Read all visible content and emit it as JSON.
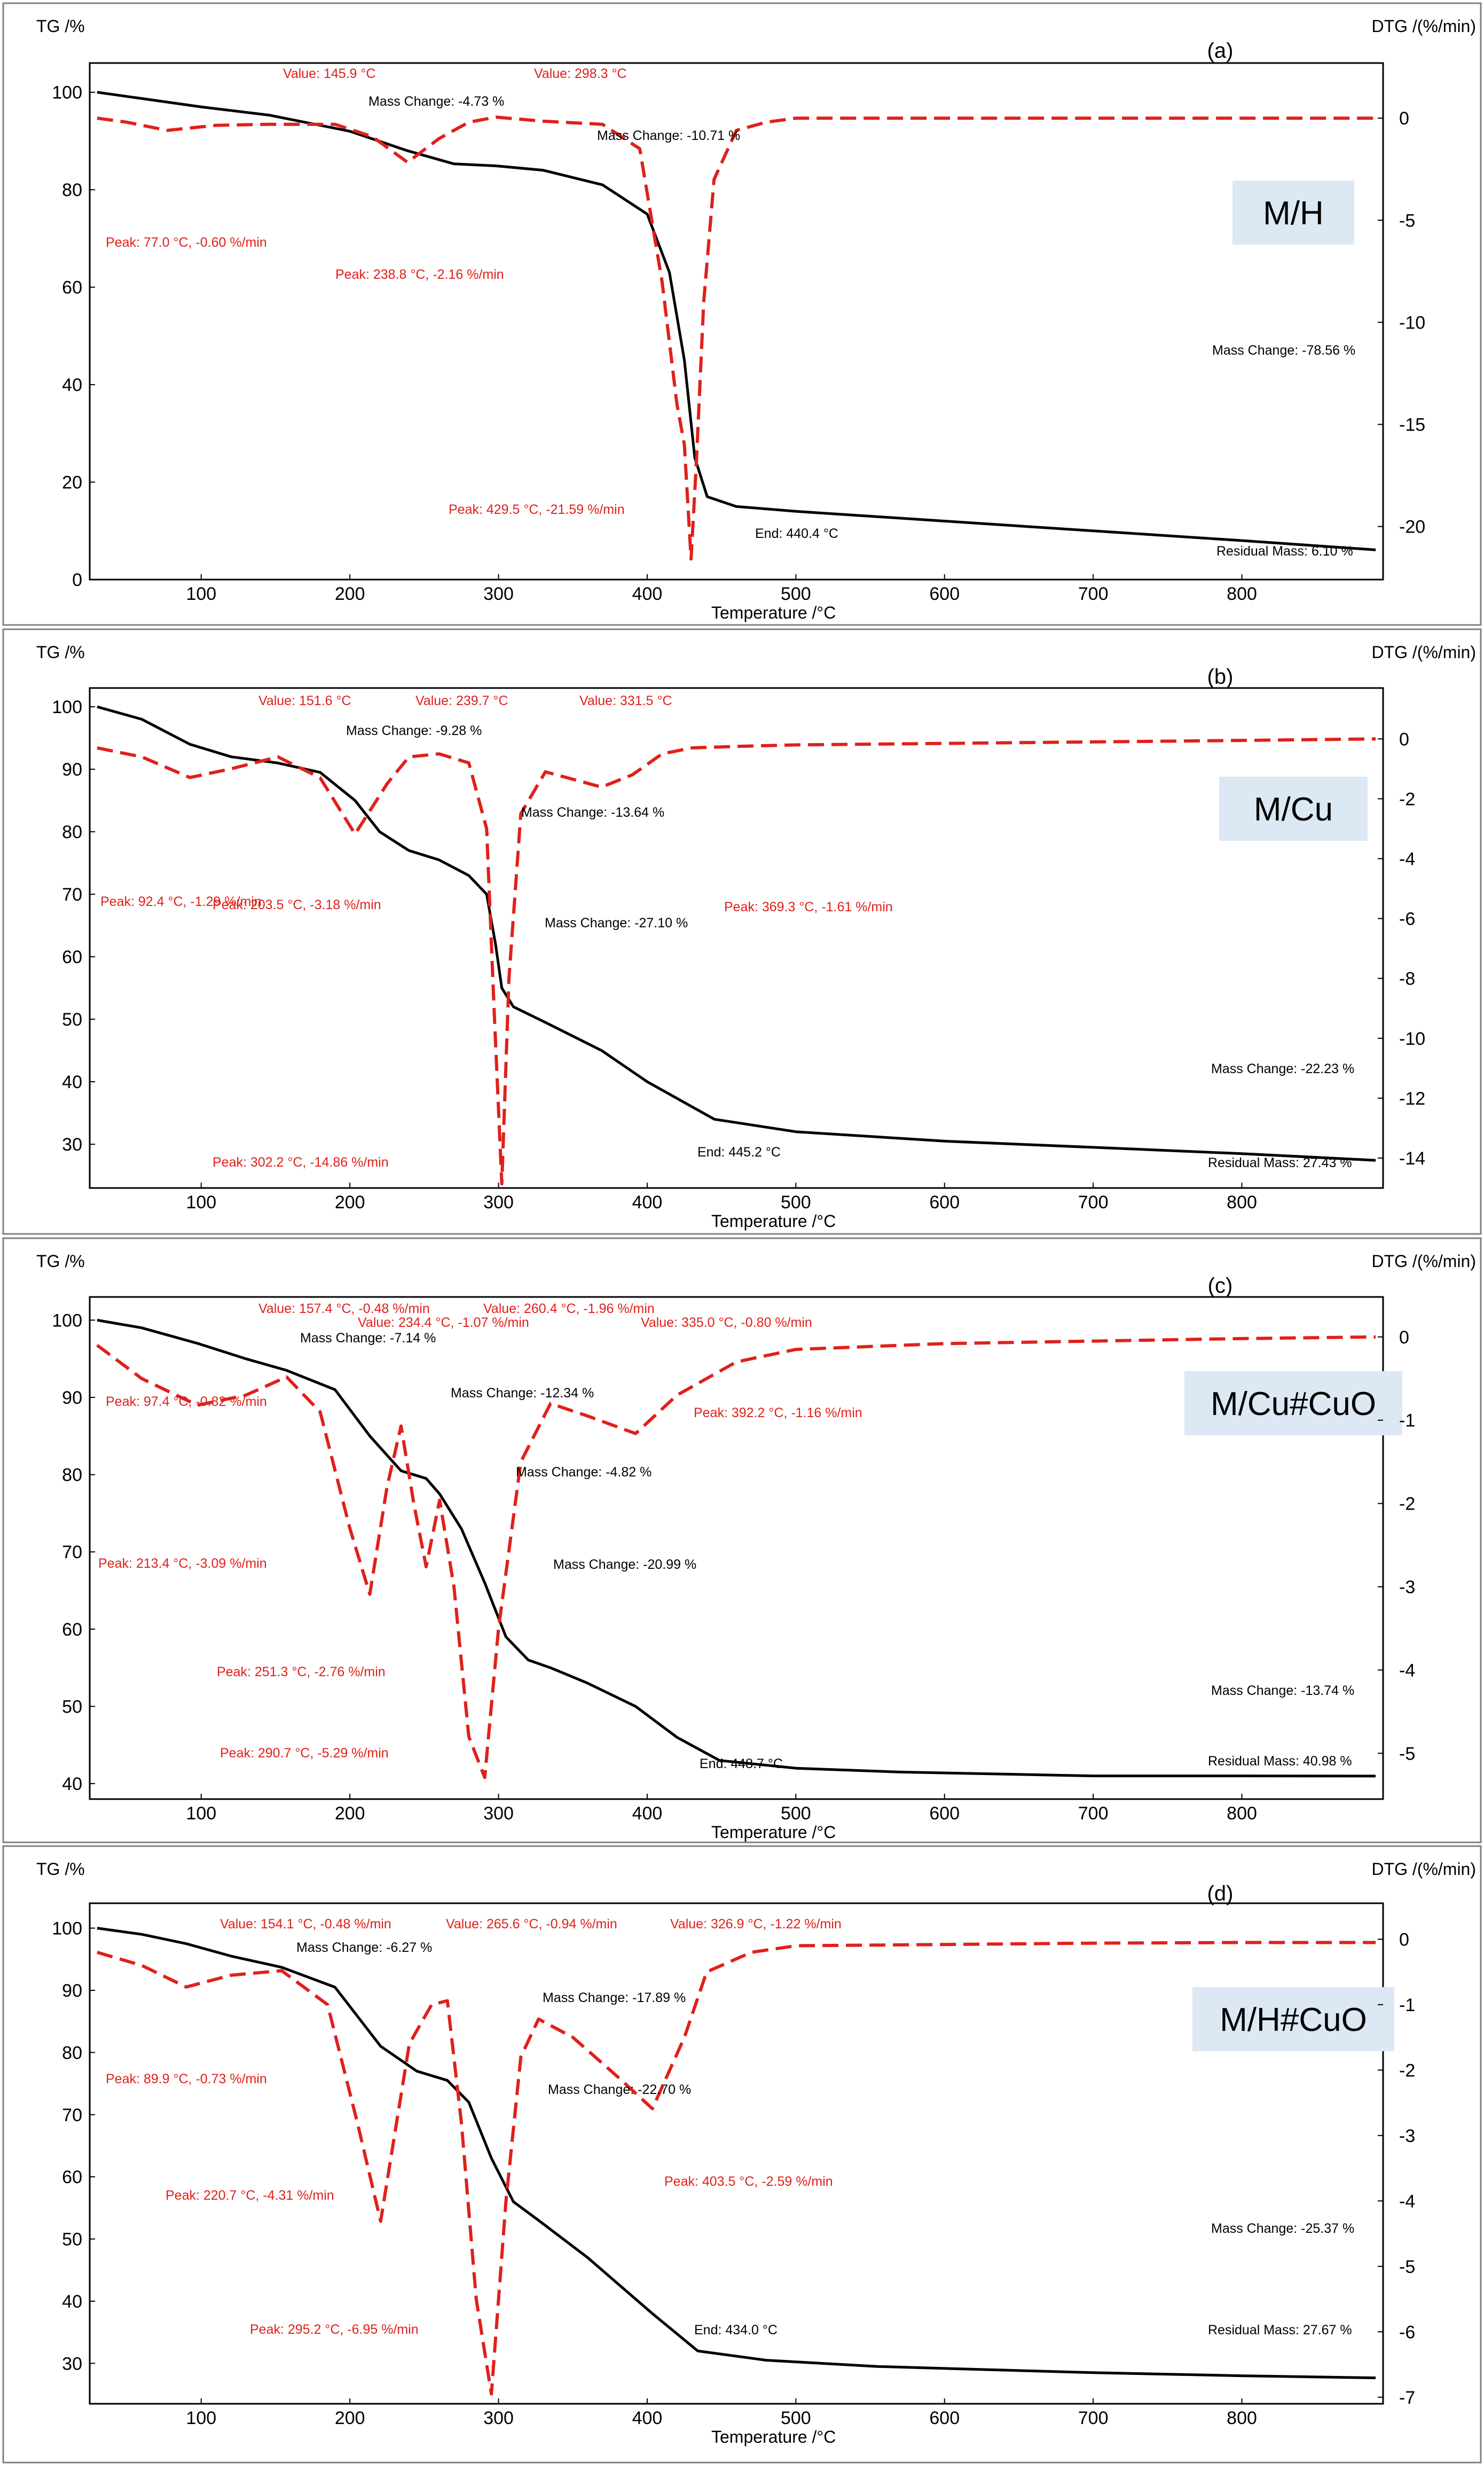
{
  "colors": {
    "tg": "#000000",
    "dtg": "#e0201b",
    "badge": "#dce8f4",
    "frame": "#808080"
  },
  "chart_data": [
    {
      "type": "line",
      "panel": "(a)",
      "sample": "M/H",
      "ylabel_left": "TG /%",
      "ylabel_right": "DTG /(%/min)",
      "xlabel": "Temperature /°C",
      "xlim": [
        25,
        895
      ],
      "ylim_tg": [
        0,
        106
      ],
      "ylim_dtg": [
        -22.6,
        2.7
      ],
      "xticks": [
        100,
        200,
        300,
        400,
        500,
        600,
        700,
        800
      ],
      "yticks_tg": [
        0,
        20,
        40,
        60,
        80,
        100
      ],
      "yticks_dtg": [
        0,
        -5,
        -10,
        -15,
        -20
      ],
      "series": [
        {
          "name": "TG",
          "style": "solid",
          "axis": "left",
          "x": [
            30,
            100,
            145.9,
            200,
            238.8,
            270,
            298.3,
            330,
            370,
            400,
            415,
            425,
            432,
            440.4,
            460,
            500,
            600,
            700,
            800,
            890
          ],
          "y": [
            100,
            97,
            95.3,
            92,
            88,
            85.3,
            84.9,
            84,
            81,
            75,
            63,
            45,
            25,
            17,
            15,
            14,
            12,
            10,
            8,
            6.1
          ]
        },
        {
          "name": "DTG",
          "style": "dashed",
          "axis": "right",
          "x": [
            30,
            50,
            77,
            110,
            145.9,
            190,
            215,
            238.8,
            260,
            280,
            298.3,
            330,
            370,
            395,
            410,
            420,
            425,
            429.5,
            433,
            438,
            445,
            460,
            480,
            500,
            600,
            700,
            800,
            890
          ],
          "y": [
            0,
            -0.2,
            -0.6,
            -0.35,
            -0.3,
            -0.3,
            -0.9,
            -2.16,
            -1,
            -0.2,
            0.05,
            -0.15,
            -0.3,
            -1.5,
            -8,
            -14,
            -16,
            -21.59,
            -17,
            -9,
            -3,
            -0.6,
            -0.2,
            0,
            0,
            0,
            0,
            0
          ]
        }
      ],
      "annotations": [
        {
          "text": "Value: 145.9 °C",
          "color": "red"
        },
        {
          "text": "Value: 298.3 °C",
          "color": "red"
        },
        {
          "text": "Mass Change: -4.73 %",
          "color": "black"
        },
        {
          "text": "Mass Change: -10.71 %",
          "color": "black"
        },
        {
          "text": "Peak: 77.0 °C, -0.60 %/min",
          "color": "red"
        },
        {
          "text": "Peak: 238.8 °C, -2.16 %/min",
          "color": "red"
        },
        {
          "text": "Mass Change: -78.56 %",
          "color": "black"
        },
        {
          "text": "Peak: 429.5 °C, -21.59 %/min",
          "color": "red"
        },
        {
          "text": "End: 440.4 °C",
          "color": "black"
        },
        {
          "text": "Residual Mass: 6.10 %",
          "color": "black"
        }
      ]
    },
    {
      "type": "line",
      "panel": "(b)",
      "sample": "M/Cu",
      "ylabel_left": "TG /%",
      "ylabel_right": "DTG /(%/min)",
      "xlabel": "Temperature /°C",
      "xlim": [
        25,
        895
      ],
      "ylim_tg": [
        23,
        103
      ],
      "ylim_dtg": [
        -15.0,
        1.7
      ],
      "xticks": [
        100,
        200,
        300,
        400,
        500,
        600,
        700,
        800
      ],
      "yticks_tg": [
        30,
        40,
        50,
        60,
        70,
        80,
        90,
        100
      ],
      "yticks_dtg": [
        0,
        -2,
        -4,
        -6,
        -8,
        -10,
        -12,
        -14
      ],
      "series": [
        {
          "name": "TG",
          "style": "solid",
          "axis": "left",
          "x": [
            30,
            60,
            92.4,
            120,
            151.6,
            180,
            203.5,
            220,
            239.7,
            260,
            280,
            292,
            298,
            302.2,
            310,
            331.5,
            369.3,
            400,
            445.2,
            500,
            600,
            700,
            800,
            890
          ],
          "y": [
            100,
            98,
            94,
            92,
            91,
            89.5,
            85,
            80,
            77,
            75.5,
            73,
            70,
            62,
            55,
            52,
            49.5,
            45,
            40,
            34,
            32,
            30.5,
            29.5,
            28.5,
            27.43
          ]
        },
        {
          "name": "DTG",
          "style": "dashed",
          "axis": "right",
          "x": [
            30,
            60,
            92.4,
            120,
            151.6,
            180,
            203.5,
            225,
            239.7,
            260,
            280,
            292,
            297,
            302.2,
            307,
            315,
            331.5,
            350,
            369.3,
            390,
            410,
            430,
            460,
            500,
            600,
            700,
            800,
            890
          ],
          "y": [
            -0.3,
            -0.6,
            -1.29,
            -1.0,
            -0.6,
            -1.3,
            -3.18,
            -1.5,
            -0.6,
            -0.5,
            -0.8,
            -3,
            -9,
            -14.86,
            -8,
            -2.5,
            -1.1,
            -1.35,
            -1.61,
            -1.2,
            -0.5,
            -0.3,
            -0.25,
            -0.2,
            -0.15,
            -0.1,
            -0.05,
            0
          ]
        }
      ],
      "annotations": [
        {
          "text": "Value: 151.6 °C",
          "color": "red"
        },
        {
          "text": "Value: 239.7 °C",
          "color": "red"
        },
        {
          "text": "Value: 331.5 °C",
          "color": "red"
        },
        {
          "text": "Mass Change: -9.28 %",
          "color": "black"
        },
        {
          "text": "Mass Change: -13.64 %",
          "color": "black"
        },
        {
          "text": "Peak: 92.4 °C, -1.29 %/min",
          "color": "red"
        },
        {
          "text": "Peak: 203.5 °C, -3.18 %/min",
          "color": "red"
        },
        {
          "text": "Peak: 369.3 °C, -1.61 %/min",
          "color": "red"
        },
        {
          "text": "Mass Change: -27.10 %",
          "color": "black"
        },
        {
          "text": "Mass Change: -22.23 %",
          "color": "black"
        },
        {
          "text": "End: 445.2 °C",
          "color": "black"
        },
        {
          "text": "Peak: 302.2 °C, -14.86 %/min",
          "color": "red"
        },
        {
          "text": "Residual Mass: 27.43 %",
          "color": "black"
        }
      ]
    },
    {
      "type": "line",
      "panel": "(c)",
      "sample": "M/Cu#CuO",
      "ylabel_left": "TG /%",
      "ylabel_right": "DTG /(%/min)",
      "xlabel": "Temperature /°C",
      "xlim": [
        25,
        895
      ],
      "ylim_tg": [
        38,
        103
      ],
      "ylim_dtg": [
        -5.55,
        0.48
      ],
      "xticks": [
        100,
        200,
        300,
        400,
        500,
        600,
        700,
        800
      ],
      "yticks_tg": [
        40,
        50,
        60,
        70,
        80,
        90,
        100
      ],
      "yticks_dtg": [
        0,
        -1,
        -2,
        -3,
        -4,
        -5
      ],
      "series": [
        {
          "name": "TG",
          "style": "solid",
          "axis": "left",
          "x": [
            30,
            60,
            97.4,
            130,
            157.4,
            190,
            213.4,
            234.4,
            251.3,
            260.4,
            275,
            290.7,
            305,
            320,
            335,
            360,
            392.2,
            420,
            448.7,
            500,
            570,
            700,
            800,
            890
          ],
          "y": [
            100,
            99,
            97,
            95,
            93.5,
            91,
            85,
            80.5,
            79.5,
            77.5,
            73,
            66,
            59,
            56,
            55,
            53,
            50,
            46,
            43,
            42,
            41.5,
            41,
            41,
            40.98
          ]
        },
        {
          "name": "DTG",
          "style": "dashed",
          "axis": "right",
          "x": [
            30,
            60,
            97.4,
            130,
            157.4,
            180,
            200,
            213.4,
            225,
            234.4,
            243,
            251.3,
            260.4,
            270,
            280,
            290.7,
            300,
            315,
            335,
            360,
            392.2,
            420,
            460,
            500,
            600,
            700,
            800,
            890
          ],
          "y": [
            -0.1,
            -0.5,
            -0.82,
            -0.7,
            -0.48,
            -0.9,
            -2.3,
            -3.09,
            -1.8,
            -1.07,
            -2.0,
            -2.76,
            -1.96,
            -3.0,
            -4.8,
            -5.29,
            -3.5,
            -1.5,
            -0.8,
            -0.95,
            -1.16,
            -0.7,
            -0.3,
            -0.15,
            -0.08,
            -0.05,
            -0.02,
            0
          ]
        }
      ],
      "annotations": [
        {
          "text": "Value: 157.4 °C, -0.48 %/min",
          "color": "red"
        },
        {
          "text": "Value: 260.4 °C, -1.96 %/min",
          "color": "red"
        },
        {
          "text": "Value: 234.4 °C, -1.07 %/min",
          "color": "red"
        },
        {
          "text": "Value: 335.0 °C, -0.80 %/min",
          "color": "red"
        },
        {
          "text": "Mass Change: -7.14 %",
          "color": "black"
        },
        {
          "text": "Peak: 97.4 °C, -0.82 %/min",
          "color": "red"
        },
        {
          "text": "Mass Change: -12.34 %",
          "color": "black"
        },
        {
          "text": "Peak: 392.2 °C, -1.16 %/min",
          "color": "red"
        },
        {
          "text": "Mass Change: -4.82 %",
          "color": "black"
        },
        {
          "text": "Peak: 213.4 °C, -3.09 %/min",
          "color": "red"
        },
        {
          "text": "Mass Change: -20.99 %",
          "color": "black"
        },
        {
          "text": "Peak: 251.3 °C, -2.76 %/min",
          "color": "red"
        },
        {
          "text": "Mass Change: -13.74 %",
          "color": "black"
        },
        {
          "text": "Peak: 290.7 °C, -5.29 %/min",
          "color": "red"
        },
        {
          "text": "End: 448.7 °C",
          "color": "black"
        },
        {
          "text": "Residual Mass: 40.98 %",
          "color": "black"
        }
      ]
    },
    {
      "type": "line",
      "panel": "(d)",
      "sample": "M/H#CuO",
      "ylabel_left": "TG /%",
      "ylabel_right": "DTG /(%/min)",
      "xlabel": "Temperature /°C",
      "xlim": [
        25,
        895
      ],
      "ylim_tg": [
        23.5,
        104
      ],
      "ylim_dtg": [
        -7.1,
        0.55
      ],
      "xticks": [
        100,
        200,
        300,
        400,
        500,
        600,
        700,
        800
      ],
      "yticks_tg": [
        30,
        40,
        50,
        60,
        70,
        80,
        90,
        100
      ],
      "yticks_dtg": [
        0,
        -1,
        -2,
        -3,
        -4,
        -5,
        -6,
        -7
      ],
      "series": [
        {
          "name": "TG",
          "style": "solid",
          "axis": "left",
          "x": [
            30,
            60,
            89.9,
            120,
            154.1,
            190,
            220.7,
            245,
            265.6,
            280,
            295.2,
            310,
            326.9,
            360,
            403.5,
            434.0,
            480,
            555,
            700,
            800,
            890
          ],
          "y": [
            100,
            99,
            97.5,
            95.5,
            93.7,
            90.5,
            81,
            77,
            75.5,
            72,
            63,
            56,
            53,
            47,
            38,
            32,
            30.5,
            29.5,
            28.5,
            28,
            27.67
          ]
        },
        {
          "name": "DTG",
          "style": "dashed",
          "axis": "right",
          "x": [
            30,
            60,
            89.9,
            120,
            154.1,
            185,
            205,
            220.7,
            240,
            255,
            265.6,
            275,
            285,
            295.2,
            305,
            315,
            326.9,
            350,
            380,
            403.5,
            425,
            440,
            470,
            500,
            600,
            700,
            800,
            890
          ],
          "y": [
            -0.2,
            -0.4,
            -0.73,
            -0.55,
            -0.48,
            -1.0,
            -2.8,
            -4.31,
            -1.6,
            -1.0,
            -0.94,
            -2.8,
            -5.5,
            -6.95,
            -4,
            -1.8,
            -1.22,
            -1.5,
            -2.1,
            -2.59,
            -1.5,
            -0.5,
            -0.2,
            -0.1,
            -0.08,
            -0.06,
            -0.05,
            -0.05
          ]
        }
      ],
      "annotations": [
        {
          "text": "Value: 154.1 °C, -0.48 %/min",
          "color": "red"
        },
        {
          "text": "Value: 265.6 °C, -0.94 %/min",
          "color": "red"
        },
        {
          "text": "Value: 326.9 °C, -1.22 %/min",
          "color": "red"
        },
        {
          "text": "Mass Change: -6.27 %",
          "color": "black"
        },
        {
          "text": "Mass Change: -17.89 %",
          "color": "black"
        },
        {
          "text": "Peak: 89.9 °C, -0.73 %/min",
          "color": "red"
        },
        {
          "text": "Mass Change: -22.70 %",
          "color": "black"
        },
        {
          "text": "Peak: 403.5 °C, -2.59 %/min",
          "color": "red"
        },
        {
          "text": "Peak: 220.7 °C, -4.31 %/min",
          "color": "red"
        },
        {
          "text": "Mass Change: -25.37 %",
          "color": "black"
        },
        {
          "text": "Peak: 295.2 °C, -6.95 %/min",
          "color": "red"
        },
        {
          "text": "End: 434.0 °C",
          "color": "black"
        },
        {
          "text": "Residual Mass: 27.67 %",
          "color": "black"
        }
      ]
    }
  ]
}
